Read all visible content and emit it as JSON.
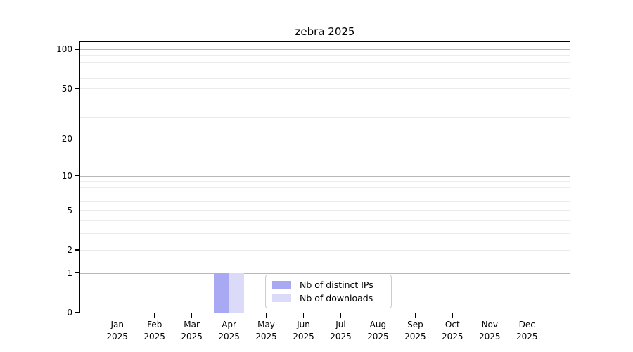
{
  "chart_data": {
    "type": "bar",
    "title": "zebra 2025",
    "categories": [
      "Jan",
      "Feb",
      "Mar",
      "Apr",
      "May",
      "Jun",
      "Jul",
      "Aug",
      "Sep",
      "Oct",
      "Nov",
      "Dec"
    ],
    "category_year": "2025",
    "series": [
      {
        "name": "Nb of distinct IPs",
        "color": "#a9a9f3",
        "values": [
          0,
          0,
          0,
          1,
          0,
          0,
          0,
          0,
          0,
          0,
          0,
          0
        ]
      },
      {
        "name": "Nb of downloads",
        "color": "#dbdbf9",
        "values": [
          0,
          0,
          0,
          1,
          0,
          0,
          0,
          0,
          0,
          0,
          0,
          0
        ]
      }
    ],
    "yscale": "log1p",
    "ylim": [
      0,
      115
    ],
    "y_tick_values": [
      0,
      1,
      2,
      5,
      10,
      20,
      50,
      100
    ],
    "y_major_gridlines": [
      1,
      10,
      100
    ],
    "y_minor_gridlines": [
      2,
      3,
      4,
      5,
      6,
      7,
      8,
      9,
      20,
      30,
      40,
      50,
      60,
      70,
      80,
      90
    ],
    "grid": "horizontal major+minor",
    "legend_position": "lower center",
    "colors": {
      "bar_distinct_ips": "#a9a9f3",
      "bar_downloads": "#dbdbf9",
      "major_grid": "#b8b8b8",
      "minor_grid": "#ececec",
      "axis": "#000000",
      "legend_border": "#cccccc",
      "background": "#ffffff"
    }
  }
}
